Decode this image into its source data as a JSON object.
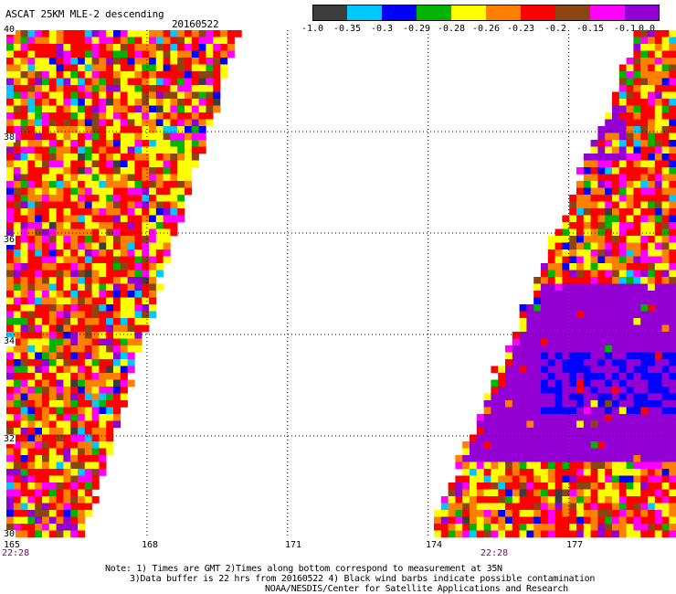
{
  "header": {
    "title": "ASCAT 25KM MLE-2 descending",
    "date": "20160522"
  },
  "colorbar": {
    "colors": [
      "#3c3c3c",
      "#00c8ff",
      "#0000ff",
      "#00b400",
      "#ffff00",
      "#ff8000",
      "#ff0000",
      "#8b4513",
      "#ff00ff",
      "#9400d3"
    ],
    "labels": [
      "-1.0",
      "-0.35",
      "-0.3",
      "-0.29",
      "-0.28",
      "-0.26",
      "-0.23",
      "-0.2",
      "-0.15",
      "-0.1",
      "0.0"
    ]
  },
  "map": {
    "lon_labels": [
      "165",
      "168",
      "171",
      "174",
      "177"
    ],
    "lat_labels": [
      "40",
      "38",
      "36",
      "34",
      "32",
      "30"
    ],
    "time_labels": [
      "22:28",
      "22:28"
    ],
    "lon_range": [
      165,
      180
    ],
    "lat_range": [
      30,
      40
    ],
    "grid": "dotted",
    "swaths": [
      {
        "name": "west",
        "top_lon_right": 170,
        "bottom_lon_right": 166.7
      },
      {
        "name": "east",
        "top_lon_left": 178.4,
        "bottom_lon_left": 173.9
      }
    ],
    "anomaly_region_color": "#9400d3"
  },
  "footer": {
    "line1": "Note: 1) Times are GMT 2)Times along bottom correspond to measurement at 35N",
    "line2": "3)Data buffer is 22 hrs from 20160522 4) Black wind barbs indicate possible contamination",
    "line3": "NOAA/NESDIS/Center for Satellite Applications and Research"
  }
}
